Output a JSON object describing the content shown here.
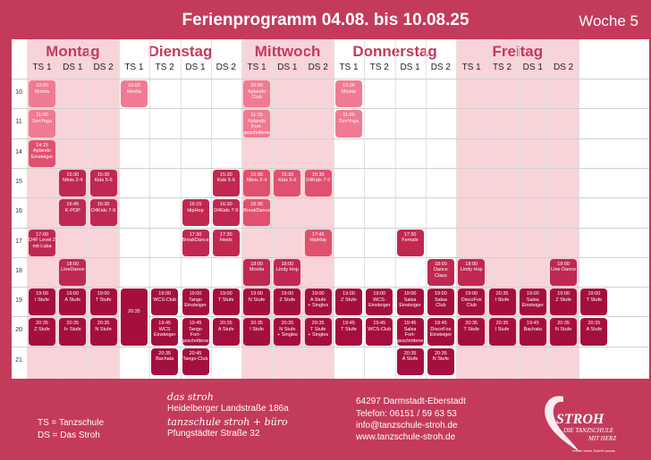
{
  "header": {
    "title": "Ferienprogramm 04.08. bis 10.08.25",
    "week": "Woche 5"
  },
  "days": [
    {
      "name": "Montag",
      "cols": [
        "TS 1",
        "DS 1",
        "DS 2"
      ]
    },
    {
      "name": "Dienstag",
      "cols": [
        "TS 1",
        "TS 2",
        "DS 1",
        "DS 2"
      ]
    },
    {
      "name": "Mittwoch",
      "cols": [
        "TS 1",
        "DS 1",
        "DS 2"
      ]
    },
    {
      "name": "Donnerstag",
      "cols": [
        "TS 1",
        "TS 2",
        "DS 1",
        "DS 2"
      ]
    },
    {
      "name": "Freitag",
      "cols": [
        "TS 1",
        "TS 2",
        "DS 1",
        "DS 2"
      ]
    }
  ],
  "hours": [
    "10",
    "11",
    "14",
    "15",
    "16",
    "17",
    "18",
    "19",
    "20",
    "21"
  ],
  "events": [
    {
      "col": 0,
      "slot": 0,
      "rows": 1,
      "c": "c1",
      "t": "10:00\nMovita"
    },
    {
      "col": 0,
      "slot": 1,
      "rows": 1,
      "c": "c1",
      "t": "11:00\nSenYoga"
    },
    {
      "col": 0,
      "slot": 2,
      "rows": 1,
      "c": "c2",
      "t": "14:15\nAplando\nEinsteiger"
    },
    {
      "col": 0,
      "slot": 5,
      "rows": 1,
      "c": "c3",
      "t": "17:00\nD4F Level 2\nmit Luba"
    },
    {
      "col": 0,
      "slot": 7,
      "rows": 1,
      "c": "c4",
      "t": "19:00\nI Stufe"
    },
    {
      "col": 0,
      "slot": 8,
      "rows": 1,
      "c": "c4",
      "t": "20:35\nZ Stufe"
    },
    {
      "col": 1,
      "slot": 3,
      "rows": 1,
      "c": "c3",
      "t": "15:30\nMinis 2-4"
    },
    {
      "col": 1,
      "slot": 4,
      "rows": 1,
      "c": "c3",
      "t": "16:45\nK-POP"
    },
    {
      "col": 1,
      "slot": 6,
      "rows": 1,
      "c": "c3",
      "t": "18:00\nLineDance"
    },
    {
      "col": 1,
      "slot": 7,
      "rows": 1,
      "c": "c4",
      "t": "19:00\nA Stufe"
    },
    {
      "col": 1,
      "slot": 8,
      "rows": 1,
      "c": "c4",
      "t": "20:35\nI+ Stufe"
    },
    {
      "col": 2,
      "slot": 3,
      "rows": 1,
      "c": "c3",
      "t": "15:30\nKids 5-6"
    },
    {
      "col": 2,
      "slot": 4,
      "rows": 1,
      "c": "c3",
      "t": "16:30\nD4Kids 7-9"
    },
    {
      "col": 2,
      "slot": 7,
      "rows": 1,
      "c": "c4",
      "t": "19:00\nT Stufe"
    },
    {
      "col": 2,
      "slot": 8,
      "rows": 1,
      "c": "c4",
      "t": "20:35\nN Stufe"
    },
    {
      "col": 3,
      "slot": 0,
      "rows": 1,
      "c": "c1",
      "t": "10:00\nMovita"
    },
    {
      "col": 3,
      "slot": 7,
      "rows": 2,
      "c": "c4",
      "t": "\n\n\n20:35"
    },
    {
      "col": 4,
      "slot": 7,
      "rows": 1,
      "c": "c4",
      "t": "19:00\nWCS-Club"
    },
    {
      "col": 4,
      "slot": 8,
      "rows": 1,
      "c": "c4",
      "t": "19:45\nWCS\nEinsteiger"
    },
    {
      "col": 4,
      "slot": 9,
      "rows": 1,
      "c": "c4",
      "t": "20:35\nBachata"
    },
    {
      "col": 5,
      "slot": 4,
      "rows": 1,
      "c": "c3",
      "t": "16:15\nHipHop"
    },
    {
      "col": 5,
      "slot": 5,
      "rows": 1,
      "c": "c3",
      "t": "17:30\nBreakDance"
    },
    {
      "col": 5,
      "slot": 7,
      "rows": 1,
      "c": "c4",
      "t": "19:00\nTango\nEinsteiger"
    },
    {
      "col": 5,
      "slot": 8,
      "rows": 1,
      "c": "c4",
      "t": "19:45\nTango\nFort-\ngeschrittene"
    },
    {
      "col": 5,
      "slot": 9,
      "rows": 1,
      "c": "c4",
      "t": "20:45\nTango-Club"
    },
    {
      "col": 6,
      "slot": 3,
      "rows": 1,
      "c": "c3",
      "t": "15:30\nKids 5-6"
    },
    {
      "col": 6,
      "slot": 4,
      "rows": 1,
      "c": "c3",
      "t": "16:30\nD4Kids 7-9"
    },
    {
      "col": 6,
      "slot": 5,
      "rows": 1,
      "c": "c3",
      "t": "17:30\nHeels"
    },
    {
      "col": 6,
      "slot": 7,
      "rows": 1,
      "c": "c4",
      "t": "19:00\nT Stufe"
    },
    {
      "col": 6,
      "slot": 8,
      "rows": 1,
      "c": "c4",
      "t": "20:35\nA Stufe"
    },
    {
      "col": 7,
      "slot": 0,
      "rows": 1,
      "c": "c1",
      "t": "10:00\nAplando\nClub"
    },
    {
      "col": 7,
      "slot": 1,
      "rows": 1,
      "c": "c1",
      "t": "11:15\nAplando\nFort-\ngeschrittene"
    },
    {
      "col": 7,
      "slot": 3,
      "rows": 1,
      "c": "c2",
      "t": "15:30\nMinis 2-4"
    },
    {
      "col": 7,
      "slot": 4,
      "rows": 1,
      "c": "c2",
      "t": "16:30\nBreakDance"
    },
    {
      "col": 7,
      "slot": 6,
      "rows": 1,
      "c": "c3",
      "t": "18:00\nMovita"
    },
    {
      "col": 7,
      "slot": 7,
      "rows": 1,
      "c": "c4",
      "t": "19:00\nN Stufe"
    },
    {
      "col": 7,
      "slot": 8,
      "rows": 1,
      "c": "c4",
      "t": "20:35\nI Stufe"
    },
    {
      "col": 8,
      "slot": 3,
      "rows": 1,
      "c": "c2",
      "t": "15:30\nKids 5-6"
    },
    {
      "col": 8,
      "slot": 6,
      "rows": 1,
      "c": "c3",
      "t": "18:00\nLindy Hop"
    },
    {
      "col": 8,
      "slot": 7,
      "rows": 1,
      "c": "c4",
      "t": "19:00\nZ Stufe"
    },
    {
      "col": 8,
      "slot": 8,
      "rows": 1,
      "c": "c4",
      "t": "20:35\nN Stufe\n+ Singles"
    },
    {
      "col": 9,
      "slot": 3,
      "rows": 1,
      "c": "c2",
      "t": "15:30\nD4Kids 7-9"
    },
    {
      "col": 9,
      "slot": 5,
      "rows": 1,
      "c": "c2",
      "t": "17:45\nHipHop"
    },
    {
      "col": 9,
      "slot": 7,
      "rows": 1,
      "c": "c4",
      "t": "19:00\nA Stufe\n+ Singles"
    },
    {
      "col": 9,
      "slot": 8,
      "rows": 1,
      "c": "c4",
      "t": "20:35\nT Stufe\n+ Singles"
    },
    {
      "col": 10,
      "slot": 0,
      "rows": 1,
      "c": "c1",
      "t": "10:00\nMovita"
    },
    {
      "col": 10,
      "slot": 1,
      "rows": 1,
      "c": "c1",
      "t": "11:00\nSenYoga"
    },
    {
      "col": 10,
      "slot": 7,
      "rows": 1,
      "c": "c4",
      "t": "19:00\nZ Stufe"
    },
    {
      "col": 10,
      "slot": 8,
      "rows": 1,
      "c": "c4",
      "t": "19:45\nT Stufe"
    },
    {
      "col": 11,
      "slot": 7,
      "rows": 1,
      "c": "c4",
      "t": "19:00\nWCS-\nEinsteiger"
    },
    {
      "col": 11,
      "slot": 8,
      "rows": 1,
      "c": "c4",
      "t": "19:45\nWCS-Club"
    },
    {
      "col": 12,
      "slot": 5,
      "rows": 1,
      "c": "c3",
      "t": "17:30\nFemale"
    },
    {
      "col": 12,
      "slot": 7,
      "rows": 1,
      "c": "c4",
      "t": "19:00\nSalsa\nEinsteiger"
    },
    {
      "col": 12,
      "slot": 8,
      "rows": 1,
      "c": "c4",
      "t": "19:45\nSalsa\nFort-\ngeschrittene"
    },
    {
      "col": 12,
      "slot": 9,
      "rows": 1,
      "c": "c4",
      "t": "20:35\nA Stufe"
    },
    {
      "col": 13,
      "slot": 6,
      "rows": 1,
      "c": "c3",
      "t": "18:00\nDance Class"
    },
    {
      "col": 13,
      "slot": 7,
      "rows": 1,
      "c": "c4",
      "t": "19:00\nSalsa\nClub"
    },
    {
      "col": 13,
      "slot": 8,
      "rows": 1,
      "c": "c4",
      "t": "19:45\nDiscoFox\nEinsteiger"
    },
    {
      "col": 13,
      "slot": 9,
      "rows": 1,
      "c": "c4",
      "t": "20:35\nN Stufe"
    },
    {
      "col": 14,
      "slot": 6,
      "rows": 1,
      "c": "c3",
      "t": "18:00\nLindy Hop"
    },
    {
      "col": 14,
      "slot": 7,
      "rows": 1,
      "c": "c4",
      "t": "19:00\nDiscoFox\nClub"
    },
    {
      "col": 14,
      "slot": 8,
      "rows": 1,
      "c": "c4",
      "t": "20:35\nT Stufe"
    },
    {
      "col": 15,
      "slot": 7,
      "rows": 1,
      "c": "c4",
      "t": "20:35\nI Stufe"
    },
    {
      "col": 15,
      "slot": 8,
      "rows": 1,
      "c": "c4",
      "t": "20:35\nI Stufe"
    },
    {
      "col": 16,
      "slot": 7,
      "rows": 1,
      "c": "c4",
      "t": "19:00\nSalsa\nEinsteiger"
    },
    {
      "col": 16,
      "slot": 8,
      "rows": 1,
      "c": "c4",
      "t": "19:45\nBachata"
    },
    {
      "col": 17,
      "slot": 6,
      "rows": 1,
      "c": "c3",
      "t": "18:00\nLine Dance"
    },
    {
      "col": 17,
      "slot": 7,
      "rows": 1,
      "c": "c4",
      "t": "19:00\nZ Stufe"
    },
    {
      "col": 17,
      "slot": 8,
      "rows": 1,
      "c": "c4",
      "t": "20:35\nN Stufe"
    },
    {
      "col": 18,
      "slot": 7,
      "rows": 1,
      "c": "c4",
      "t": "19:00\nT Stufe"
    },
    {
      "col": 18,
      "slot": 8,
      "rows": 1,
      "c": "c4",
      "t": "20:35\nA Stufe"
    }
  ],
  "footer": {
    "legend_ts": "TS = Tanzschule",
    "legend_ds": "DS = Das Stroh",
    "brand1": "das stroh",
    "addr1": "Heidelberger Landstraße 186a",
    "brand2": "tanzschule stroh + büro",
    "addr2": "Pfungstädter Straße 32",
    "city": "64297 Darmstadt-Eberstadt",
    "phone": "Telefon: 06151 / 59 63 53",
    "email": "info@tanzschule-stroh.de",
    "web": "www.tanzschule-stroh.de",
    "logo_main": "STROH",
    "logo_sub1": "DIE TANZSCHULE",
    "logo_sub2": "MIT HERZ",
    "logo_tag": "Immer einen Schritt voraus"
  }
}
